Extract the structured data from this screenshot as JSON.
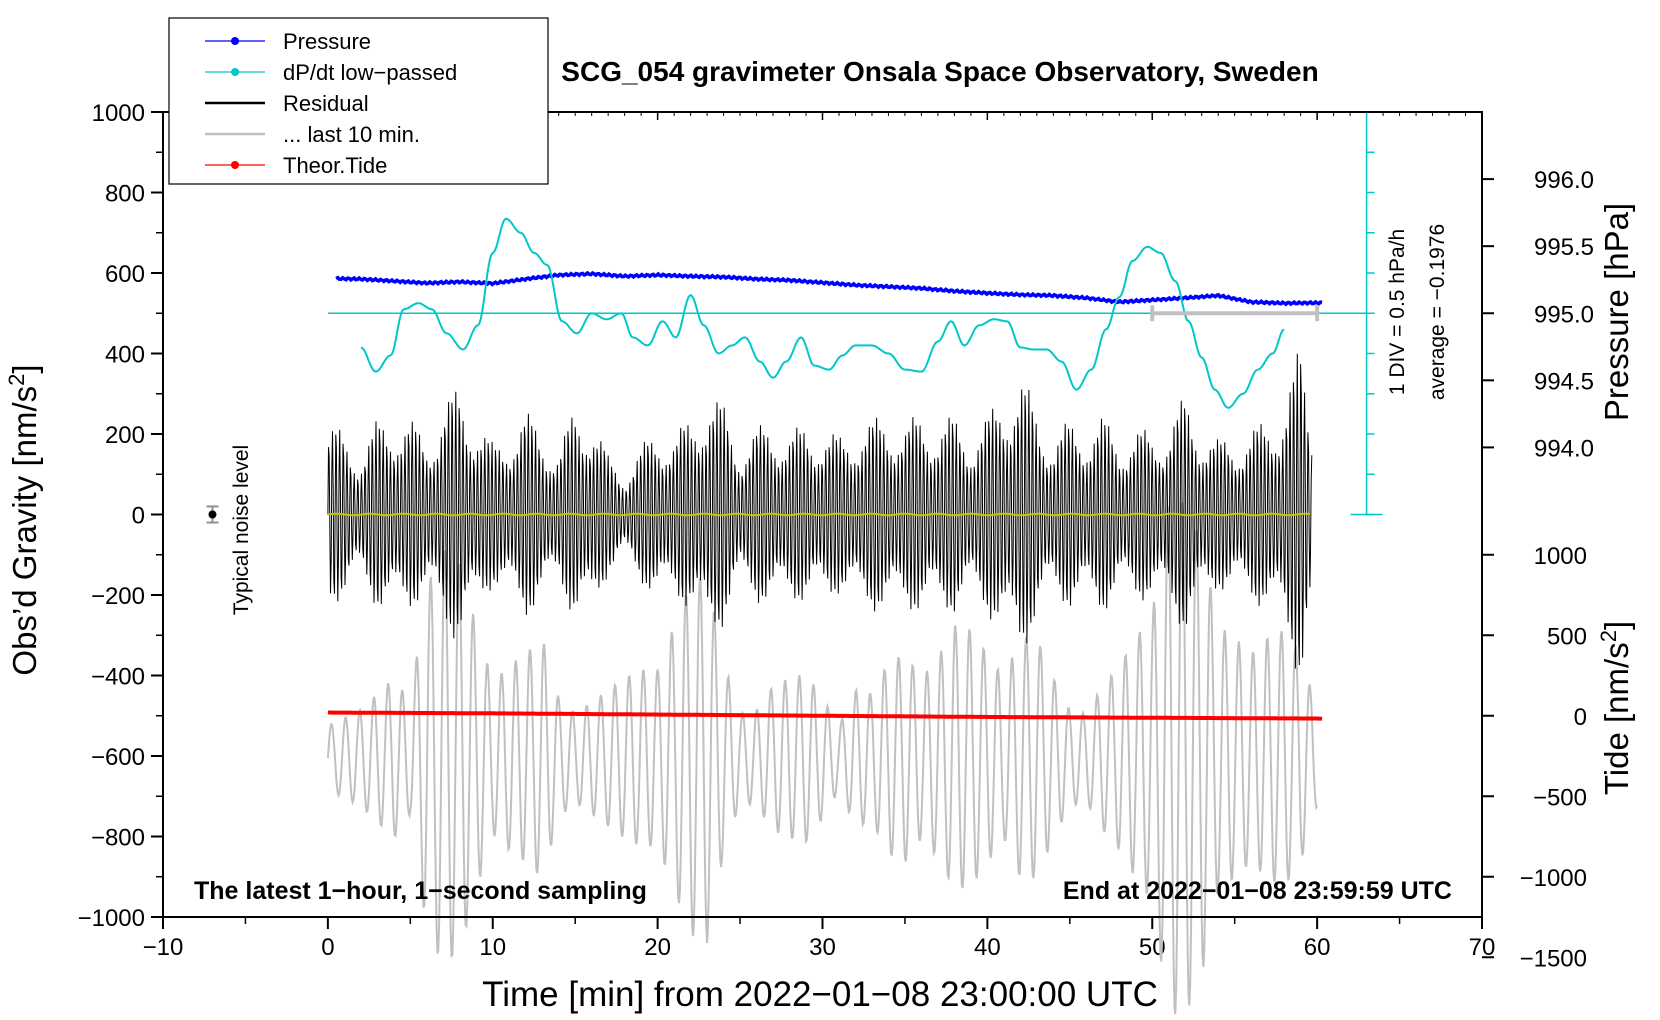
{
  "chart_data": {
    "type": "line",
    "title": "SCG_054 gravimeter Onsala Space Observatory, Sweden",
    "xlabel": "Time [min] from 2022−01−08 23:00:00 UTC",
    "ylabel_left": "Obs’d Gravity [nm/s",
    "ylabel_left_sup": "2",
    "ylabel_left_end": "]",
    "ylabel_pressure": "Pressure [hPa]",
    "ylabel_tide": "Tide [nm/s",
    "ylabel_tide_sup": "2",
    "ylabel_tide_end": "]",
    "xlim": [
      -10,
      70
    ],
    "ylim": [
      -1000,
      1000
    ],
    "x_ticks": [
      "−10",
      "0",
      "10",
      "20",
      "30",
      "40",
      "50",
      "60",
      "70"
    ],
    "x_tick_values": [
      -10,
      0,
      10,
      20,
      30,
      40,
      50,
      60,
      70
    ],
    "y_ticks": [
      "1000",
      "800",
      "600",
      "400",
      "200",
      "0",
      "−200",
      "−400",
      "−600",
      "−800",
      "−1000"
    ],
    "y_tick_values": [
      1000,
      800,
      600,
      400,
      200,
      0,
      -200,
      -400,
      -600,
      -800,
      -1000
    ],
    "pressure_axis": {
      "ticks": [
        "996.0",
        "995.5",
        "995.0",
        "994.5",
        "994.0"
      ],
      "values": [
        996.0,
        995.5,
        995.0,
        994.5,
        994.0
      ],
      "ref_value": 995.0,
      "ref_gravity": 500,
      "gravity_per_hpa": 333.3
    },
    "tide_axis": {
      "ticks": [
        "1000",
        "500",
        "0",
        "−500",
        "−1000",
        "−1500"
      ],
      "values": [
        1000,
        500,
        0,
        -500,
        -1000,
        -1500
      ],
      "gravity_at_zero_tide": -500,
      "gravity_per_tide": 0.4
    },
    "legend": {
      "placement": "top-left",
      "entries": [
        {
          "label": "Pressure",
          "color": "#0000ff",
          "marker": true
        },
        {
          "label": "dP/dt low−passed",
          "color": "#00c8c8",
          "marker": true
        },
        {
          "label": "Residual",
          "color": "#000000",
          "marker": false
        },
        {
          "label": "... last 10 min.",
          "color": "#c0c0c0",
          "marker": false
        },
        {
          "label": "Theor.Tide",
          "color": "#ff0000",
          "marker": true
        }
      ]
    },
    "annotations": {
      "left_bottom": "The latest 1−hour, 1−second sampling",
      "right_bottom": "End at 2022−01−08 23:59:59 UTC",
      "noise_label": "Typical noise level",
      "noise_x": -7,
      "noise_value": 0,
      "noise_halfwidth": 20,
      "dpdt_scale": "1 DIV = 0.5 hPa/h",
      "dpdt_average": "average = −0.1976",
      "dpdt_ref_level": 500,
      "dpdt_bar_x": 63,
      "dpdt_bar_top": 1000,
      "dpdt_bar_bottom": 0,
      "ten_min_bar_x": [
        50,
        60
      ],
      "ten_min_bar_y": 500
    },
    "series": [
      {
        "name": "Pressure",
        "color": "#0000ff",
        "x": [
          0.5,
          2,
          4,
          6,
          8,
          10,
          12,
          14,
          16,
          18,
          20,
          22,
          24,
          26,
          28,
          30,
          32,
          34,
          36,
          38,
          40,
          42,
          44,
          46,
          48,
          50,
          52,
          54,
          56,
          58,
          60.3
        ],
        "values": [
          586,
          585,
          580,
          575,
          578,
          574,
          585,
          595,
          598,
          592,
          595,
          592,
          590,
          585,
          582,
          576,
          570,
          566,
          562,
          555,
          550,
          546,
          544,
          538,
          528,
          533,
          538,
          544,
          528,
          525,
          526
        ]
      },
      {
        "name": "dP/dt low−passed",
        "color": "#00c8c8",
        "x": [
          2,
          2.9,
          3.8,
          4.6,
          5.5,
          6.3,
          7.2,
          8.2,
          9.1,
          10,
          10.8,
          11.7,
          12.5,
          13.3,
          14.2,
          15.1,
          16,
          16.9,
          17.8,
          18.5,
          19.4,
          20.3,
          21.1,
          22,
          22.8,
          23.7,
          24.5,
          25.3,
          26.2,
          27,
          27.8,
          28.7,
          29.5,
          30.4,
          31.2,
          32,
          33,
          34,
          35,
          36,
          37,
          37.8,
          38.6,
          39.5,
          40.4,
          41.2,
          42,
          42.8,
          43.6,
          44.5,
          45.4,
          46.3,
          47.2,
          48,
          48.8,
          49.7,
          50.5,
          51.4,
          52.2,
          53,
          53.8,
          54.6,
          55.5,
          56.4,
          57.3,
          58
        ],
        "values": [
          415,
          355,
          395,
          510,
          525,
          510,
          450,
          410,
          470,
          650,
          735,
          700,
          650,
          620,
          480,
          450,
          500,
          485,
          500,
          440,
          420,
          480,
          440,
          545,
          470,
          400,
          420,
          440,
          380,
          340,
          380,
          440,
          370,
          360,
          395,
          420,
          420,
          400,
          360,
          355,
          430,
          480,
          420,
          470,
          485,
          480,
          415,
          410,
          410,
          380,
          310,
          360,
          460,
          540,
          630,
          665,
          650,
          580,
          480,
          390,
          310,
          265,
          300,
          360,
          400,
          460
        ]
      },
      {
        "name": "Theor.Tide",
        "color": "#ff0000",
        "x": [
          0,
          10,
          20,
          30,
          40,
          50,
          60.3
        ],
        "values": [
          -492,
          -494,
          -497,
          -500,
          -503,
          -505,
          -507
        ]
      }
    ],
    "residual_envelope": {
      "name": "Residual",
      "color": "#000000",
      "x": [
        0,
        1,
        2,
        3,
        4,
        5,
        6,
        7,
        8,
        9,
        10,
        11,
        12,
        13,
        14,
        15,
        16,
        17,
        18,
        19,
        20,
        21,
        22,
        23,
        24,
        25,
        26,
        27,
        28,
        29,
        30,
        31,
        32,
        33,
        34,
        35,
        36,
        37,
        38,
        39,
        40,
        41,
        42,
        43,
        44,
        45,
        46,
        47,
        48,
        49,
        50,
        51,
        52,
        53,
        54,
        55,
        56,
        57,
        58,
        59,
        59.7
      ],
      "amplitude": [
        230,
        210,
        160,
        240,
        260,
        240,
        200,
        280,
        330,
        250,
        180,
        220,
        260,
        220,
        160,
        280,
        260,
        150,
        110,
        170,
        230,
        200,
        250,
        320,
        280,
        180,
        220,
        240,
        210,
        230,
        220,
        200,
        230,
        240,
        260,
        230,
        260,
        240,
        250,
        210,
        250,
        320,
        360,
        270,
        200,
        240,
        230,
        250,
        200,
        220,
        210,
        240,
        300,
        230,
        190,
        200,
        220,
        240,
        300,
        430,
        240
      ]
    },
    "last_10_min": {
      "name": "... last 10 min.",
      "color": "#c0c0c0",
      "center": -605,
      "x": [
        0,
        2,
        4,
        5,
        6,
        7,
        8,
        9,
        10,
        11,
        12,
        13,
        14,
        15,
        16,
        17,
        18,
        19,
        20,
        21,
        22,
        23,
        24,
        25,
        26,
        27,
        28,
        29,
        30,
        31,
        32,
        33,
        34,
        35,
        36,
        37,
        38,
        39,
        40,
        41,
        42,
        43,
        44,
        45,
        46,
        47,
        48,
        49,
        50,
        51,
        52,
        53,
        54,
        55,
        56,
        57,
        58,
        59,
        60
      ],
      "amplitude": [
        80,
        120,
        200,
        140,
        430,
        520,
        480,
        330,
        190,
        230,
        260,
        300,
        150,
        110,
        140,
        170,
        200,
        220,
        220,
        330,
        440,
        460,
        240,
        110,
        120,
        180,
        200,
        210,
        150,
        80,
        170,
        160,
        240,
        260,
        200,
        250,
        330,
        320,
        260,
        200,
        300,
        300,
        200,
        120,
        110,
        180,
        230,
        300,
        360,
        640,
        640,
        540,
        330,
        300,
        260,
        300,
        320,
        260,
        120
      ]
    }
  }
}
